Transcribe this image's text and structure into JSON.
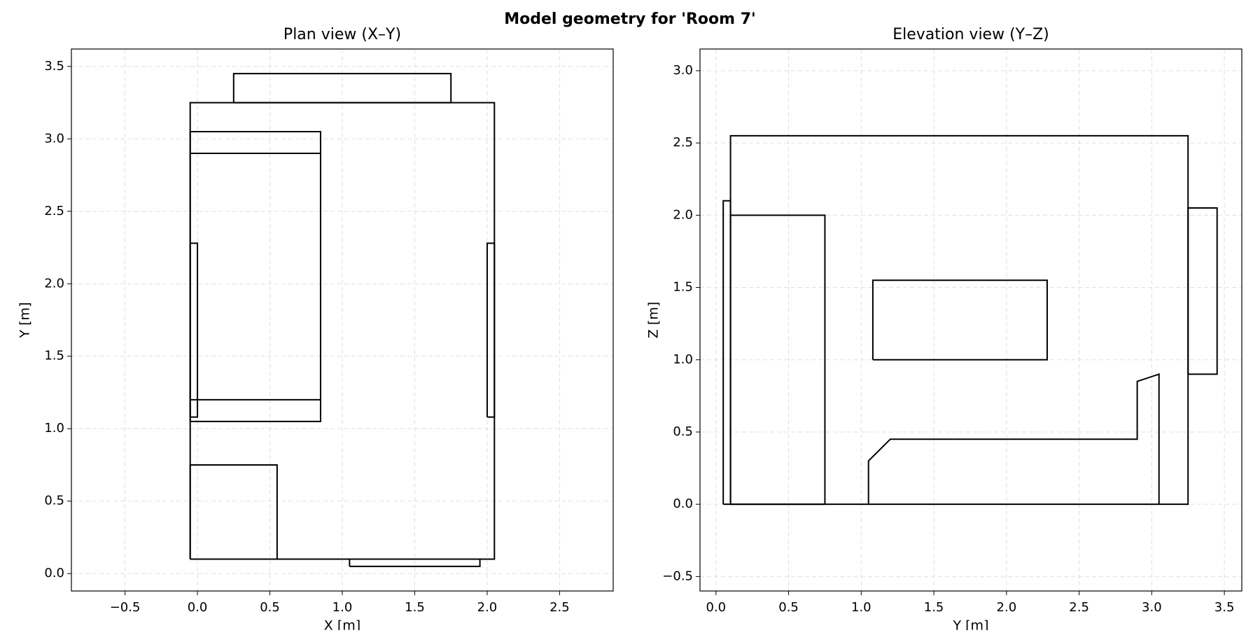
{
  "title": "Model geometry for 'Room 7'",
  "chart_data": [
    {
      "type": "line",
      "title": "Plan view (X–Y)",
      "xlabel": "X [m]",
      "ylabel": "Y [m]",
      "xlim": [
        -0.87,
        2.87
      ],
      "ylim": [
        -0.12,
        3.62
      ],
      "grid": true,
      "xticks": [
        {
          "value": -0.5,
          "label": "−0.5"
        },
        {
          "value": 0,
          "label": "0.0"
        },
        0.5,
        {
          "value": 1,
          "label": "1.0"
        },
        1.5,
        {
          "value": 2,
          "label": "2.0"
        },
        2.5
      ],
      "yticks": [
        {
          "value": 0,
          "label": "0.0"
        },
        0.5,
        {
          "value": 1,
          "label": "1.0"
        },
        1.5,
        {
          "value": 2,
          "label": "2.0"
        },
        2.5,
        {
          "value": 3,
          "label": "3.0"
        },
        3.5
      ],
      "series": [
        {
          "color": "#000000",
          "x": [
            -0.05,
            2.05,
            2.05,
            -0.05,
            -0.05
          ],
          "values": [
            0.1,
            0.1,
            3.25,
            3.25,
            0.1
          ]
        },
        {
          "color": "#000000",
          "x": [
            0.25,
            1.75,
            1.75,
            0.25,
            0.25
          ],
          "values": [
            3.25,
            3.25,
            3.45,
            3.45,
            3.25
          ]
        },
        {
          "color": "#000000",
          "x": [
            1.05,
            1.95,
            1.95,
            1.05,
            1.05
          ],
          "values": [
            0.05,
            0.05,
            0.1,
            0.1,
            0.05
          ]
        },
        {
          "color": "#000000",
          "x": [
            -0.05,
            0.85,
            0.85,
            -0.05,
            -0.05
          ],
          "values": [
            1.05,
            1.05,
            3.05,
            3.05,
            1.05
          ]
        },
        {
          "color": "#000000",
          "x": [
            -0.05,
            0.85
          ],
          "values": [
            2.9,
            2.9
          ]
        },
        {
          "color": "#000000",
          "x": [
            -0.05,
            0.85
          ],
          "values": [
            1.2,
            1.2
          ]
        },
        {
          "color": "#000000",
          "x": [
            -0.05,
            0,
            0,
            -0.05,
            -0.05
          ],
          "values": [
            1.08,
            1.08,
            2.28,
            2.28,
            1.08
          ]
        },
        {
          "color": "#000000",
          "x": [
            2,
            2.05,
            2.05,
            2,
            2
          ],
          "values": [
            1.08,
            1.08,
            2.28,
            2.28,
            1.08
          ]
        },
        {
          "color": "#000000",
          "x": [
            -0.05,
            0.55,
            0.55,
            -0.05,
            -0.05
          ],
          "values": [
            0.1,
            0.1,
            0.75,
            0.75,
            0.1
          ]
        }
      ]
    },
    {
      "type": "line",
      "title": "Elevation view (Y–Z)",
      "xlabel": "Y [m]",
      "ylabel": "Z [m]",
      "xlim": [
        -0.11,
        3.62
      ],
      "ylim": [
        -0.6,
        3.15
      ],
      "grid": true,
      "xticks": [
        {
          "value": 0,
          "label": "0.0"
        },
        0.5,
        {
          "value": 1,
          "label": "1.0"
        },
        1.5,
        {
          "value": 2,
          "label": "2.0"
        },
        2.5,
        {
          "value": 3,
          "label": "3.0"
        },
        3.5
      ],
      "yticks": [
        {
          "value": -0.5,
          "label": "−0.5"
        },
        {
          "value": 0,
          "label": "0.0"
        },
        0.5,
        {
          "value": 1,
          "label": "1.0"
        },
        1.5,
        {
          "value": 2,
          "label": "2.0"
        },
        2.5,
        {
          "value": 3,
          "label": "3.0"
        }
      ],
      "series": [
        {
          "color": "#000000",
          "x": [
            0.1,
            3.25,
            3.25,
            0.1,
            0.1
          ],
          "values": [
            0,
            0,
            2.55,
            2.55,
            0
          ]
        },
        {
          "color": "#000000",
          "x": [
            0.05,
            0.1,
            0.1,
            0.05,
            0.05
          ],
          "values": [
            0,
            0,
            2.1,
            2.1,
            0
          ]
        },
        {
          "color": "#000000",
          "x": [
            0.1,
            0.75,
            0.75,
            0.1,
            0.1
          ],
          "values": [
            0,
            0,
            2,
            2,
            0
          ]
        },
        {
          "color": "#000000",
          "x": [
            1.08,
            2.28,
            2.28,
            1.08,
            1.08
          ],
          "values": [
            1,
            1,
            1.55,
            1.55,
            1
          ]
        },
        {
          "color": "#000000",
          "x": [
            3.25,
            3.45,
            3.45,
            3.25,
            3.25
          ],
          "values": [
            0.9,
            0.9,
            2.05,
            2.05,
            0.9
          ]
        },
        {
          "color": "#000000",
          "x": [
            1.05,
            1.05,
            1.2,
            2.9,
            2.9,
            3.05,
            3.05
          ],
          "values": [
            0,
            0.3,
            0.45,
            0.45,
            0.85,
            0.9,
            0
          ]
        }
      ]
    }
  ]
}
